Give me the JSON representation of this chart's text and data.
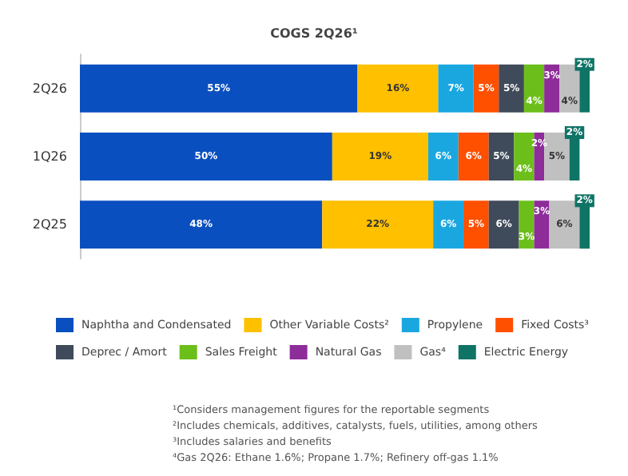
{
  "chart_data": {
    "type": "bar",
    "orientation": "horizontal",
    "stacked": true,
    "title": "COGS 2Q26¹",
    "categories": [
      "2Q26",
      "1Q26",
      "2Q25"
    ],
    "series": [
      {
        "name": "Naphtha and Condensated",
        "color": "#0a4fbf",
        "values": [
          55,
          50,
          48
        ],
        "value_labels": [
          "55%",
          "50%",
          "48%"
        ]
      },
      {
        "name": "Other Variable Costs²",
        "color": "#ffc000",
        "values": [
          16,
          19,
          22
        ],
        "value_labels": [
          "16%",
          "19%",
          "22%"
        ]
      },
      {
        "name": "Propylene",
        "color": "#1aa7e0",
        "values": [
          7,
          6,
          6
        ],
        "value_labels": [
          "7%",
          "6%",
          "6%"
        ]
      },
      {
        "name": "Fixed Costs³",
        "color": "#ff5000",
        "values": [
          5,
          6,
          5
        ],
        "value_labels": [
          "5%",
          "6%",
          "5%"
        ]
      },
      {
        "name": "Deprec / Amort",
        "color": "#3f4a5a",
        "values": [
          5,
          5,
          6
        ],
        "value_labels": [
          "5%",
          "5%",
          "6%"
        ]
      },
      {
        "name": "Sales Freight",
        "color": "#6cbf1a",
        "values": [
          4,
          4,
          3
        ],
        "value_labels": [
          "4%",
          "4%",
          "3%"
        ]
      },
      {
        "name": "Natural Gas",
        "color": "#8e2c9a",
        "values": [
          3,
          2,
          3
        ],
        "value_labels": [
          "3%",
          "2%",
          "3%"
        ]
      },
      {
        "name": "Gas⁴",
        "color": "#c0c0c0",
        "values": [
          4,
          5,
          6
        ],
        "value_labels": [
          "4%",
          "5%",
          "6%"
        ]
      },
      {
        "name": "Electric Energy",
        "color": "#0f7466",
        "values": [
          2,
          2,
          2
        ],
        "value_labels": [
          "2%",
          "2%",
          "2%"
        ]
      }
    ],
    "legend": "bottom",
    "annotations": [
      "¹Considers management figures for the reportable segments",
      "²Includes chemicals, additives, catalysts, fuels, utilities, among others",
      "³Includes salaries and benefits",
      "⁴Gas 2Q26: Ethane 1.6%; Propane 1.7%; Refinery off-gas 1.1%"
    ]
  }
}
